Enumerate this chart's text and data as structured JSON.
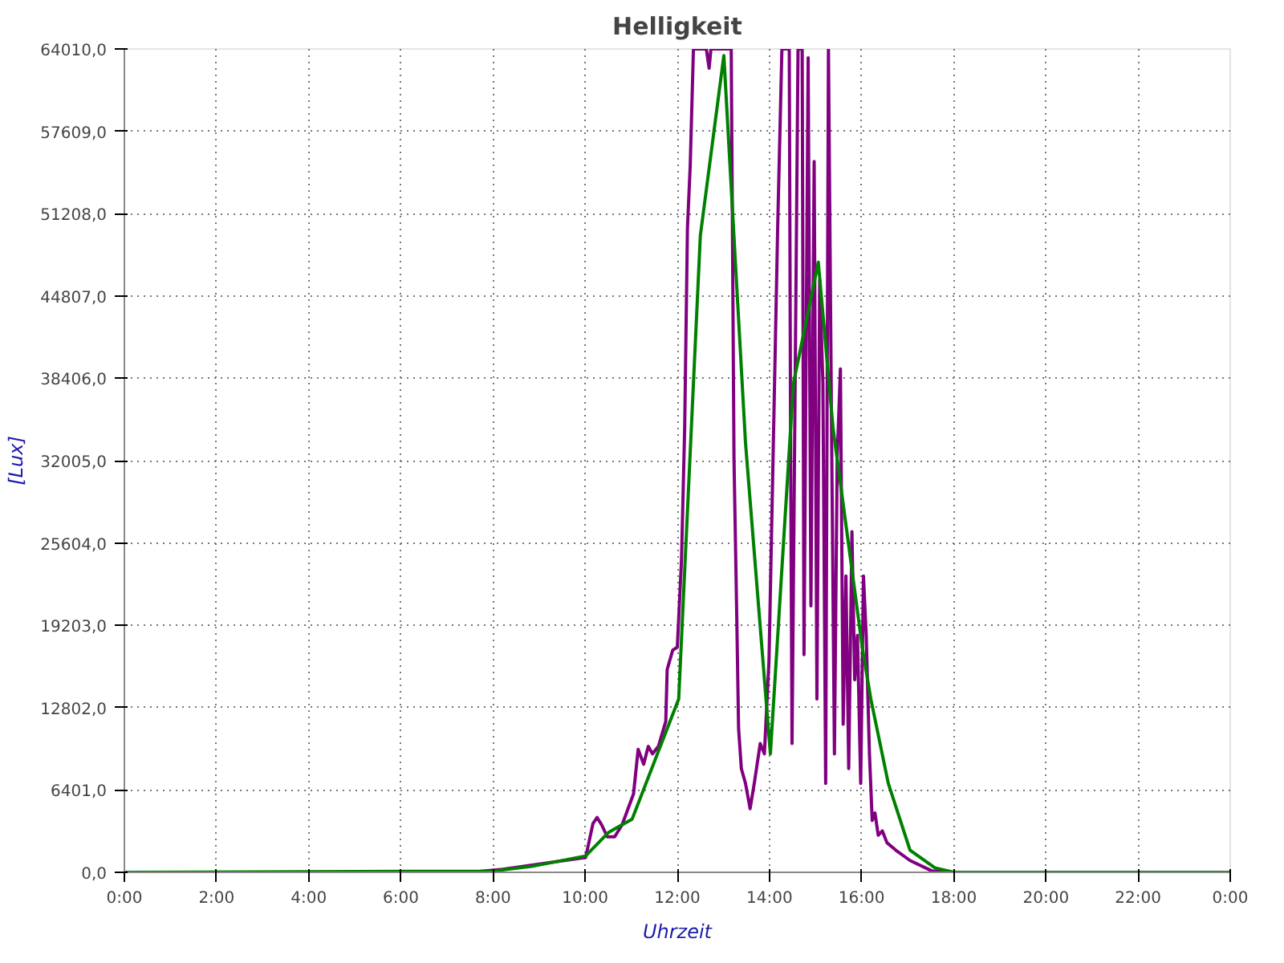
{
  "chart_data": {
    "type": "line",
    "title": "Helligkeit",
    "xlabel": "Uhrzeit",
    "ylabel": "[Lux]",
    "xlim": [
      0,
      24
    ],
    "xticks": [
      {
        "value": 0,
        "label": "0:00"
      },
      {
        "value": 2,
        "label": "2:00"
      },
      {
        "value": 4,
        "label": "4:00"
      },
      {
        "value": 6,
        "label": "6:00"
      },
      {
        "value": 8,
        "label": "8:00"
      },
      {
        "value": 10,
        "label": "10:00"
      },
      {
        "value": 12,
        "label": "12:00"
      },
      {
        "value": 14,
        "label": "14:00"
      },
      {
        "value": 16,
        "label": "16:00"
      },
      {
        "value": 18,
        "label": "18:00"
      },
      {
        "value": 20,
        "label": "20:00"
      },
      {
        "value": 22,
        "label": "22:00"
      },
      {
        "value": 24,
        "label": "0:00"
      }
    ],
    "ylim": [
      0,
      64010
    ],
    "yticks": [
      {
        "value": 0,
        "label": "0,0"
      },
      {
        "value": 6401,
        "label": "6401,0"
      },
      {
        "value": 12802,
        "label": "12802,0"
      },
      {
        "value": 19203,
        "label": "19203,0"
      },
      {
        "value": 25604,
        "label": "25604,0"
      },
      {
        "value": 32005,
        "label": "32005,0"
      },
      {
        "value": 38406,
        "label": "38406,0"
      },
      {
        "value": 44807,
        "label": "44807,0"
      },
      {
        "value": 51208,
        "label": "51208,0"
      },
      {
        "value": 57609,
        "label": "57609,0"
      },
      {
        "value": 64010,
        "label": "64010,0"
      }
    ],
    "grid": true,
    "marker": "none",
    "line_style": "solid",
    "series": [
      {
        "color": "#800080",
        "x": [
          0,
          7.5,
          8.21,
          10.01,
          10.17,
          10.26,
          10.36,
          10.48,
          10.64,
          10.8,
          11.05,
          11.15,
          11.27,
          11.37,
          11.46,
          11.59,
          11.75,
          11.78,
          11.9,
          12.0,
          12.09,
          12.16,
          12.22,
          12.28,
          12.35,
          12.63,
          12.69,
          12.73,
          13.17,
          13.23,
          13.29,
          13.33,
          13.39,
          13.48,
          13.58,
          13.67,
          13.8,
          13.89,
          13.99,
          14.18,
          14.27,
          14.43,
          14.46,
          14.49,
          14.62,
          14.71,
          14.75,
          14.84,
          14.9,
          14.97,
          15.03,
          15.09,
          15.16,
          15.22,
          15.28,
          15.35,
          15.41,
          15.47,
          15.54,
          15.6,
          15.66,
          15.72,
          15.79,
          15.85,
          15.91,
          15.98,
          16.04,
          16.1,
          16.17,
          16.23,
          16.29,
          16.36,
          16.45,
          16.55,
          16.74,
          17.05,
          17.52,
          18.0,
          24
        ],
        "values": [
          0,
          0,
          230,
          1150,
          3800,
          4260,
          3680,
          2760,
          2760,
          3680,
          6100,
          9560,
          8400,
          9790,
          9210,
          9790,
          11740,
          15770,
          17270,
          17500,
          24180,
          34540,
          50080,
          54920,
          64010,
          64010,
          62510,
          64010,
          64010,
          32240,
          19920,
          11170,
          8060,
          6910,
          4950,
          6910,
          10020,
          9210,
          16460,
          50430,
          64010,
          64010,
          32240,
          10020,
          64010,
          64010,
          16920,
          63320,
          20720,
          55260,
          13470,
          46050,
          37990,
          6910,
          64010,
          33390,
          9210,
          32240,
          39140,
          11510,
          23030,
          8060,
          26480,
          14970,
          18420,
          6910,
          23030,
          18420,
          9210,
          4030,
          4610,
          2880,
          3220,
          2300,
          1730,
          920,
          115,
          0,
          0
        ]
      },
      {
        "color": "#008000",
        "x": [
          0,
          8.0,
          8.84,
          10.01,
          10.51,
          11.02,
          12.03,
          12.5,
          13.01,
          13.48,
          14.02,
          14.52,
          15.06,
          15.38,
          16.01,
          16.2,
          16.58,
          17.05,
          17.59,
          18.0,
          24
        ],
        "values": [
          0,
          100,
          460,
          1270,
          3110,
          4140,
          13470,
          49500,
          63500,
          33390,
          9210,
          38000,
          47430,
          34540,
          17610,
          13470,
          6900,
          1730,
          350,
          0,
          0
        ]
      }
    ]
  }
}
